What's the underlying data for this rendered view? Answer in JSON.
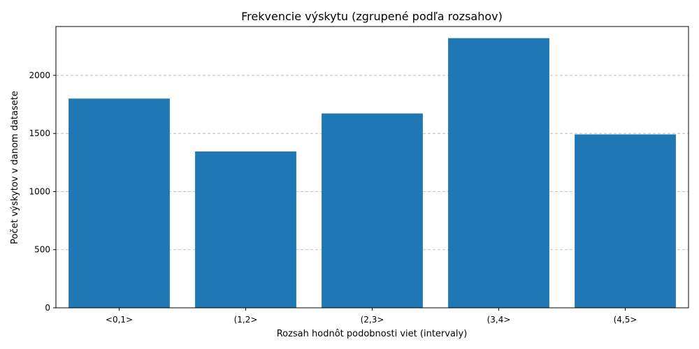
{
  "chart_data": {
    "type": "bar",
    "title": "Frekvencie výskytu (zgrupené podľa rozsahov)",
    "xlabel": "Rozsah hodnôt podobnosti viet (intervaly)",
    "ylabel": "Počet výskytov v danom datasete",
    "categories": [
      "<0,1>",
      "(1,2>",
      "(2,3>",
      "(3,4>",
      "(4,5>"
    ],
    "values": [
      1800,
      1345,
      1672,
      2320,
      1492
    ],
    "ylim": [
      0,
      2420
    ],
    "yticks": [
      0,
      500,
      1000,
      1500,
      2000
    ],
    "grid": "y",
    "bar_color": "#1f77b4"
  }
}
